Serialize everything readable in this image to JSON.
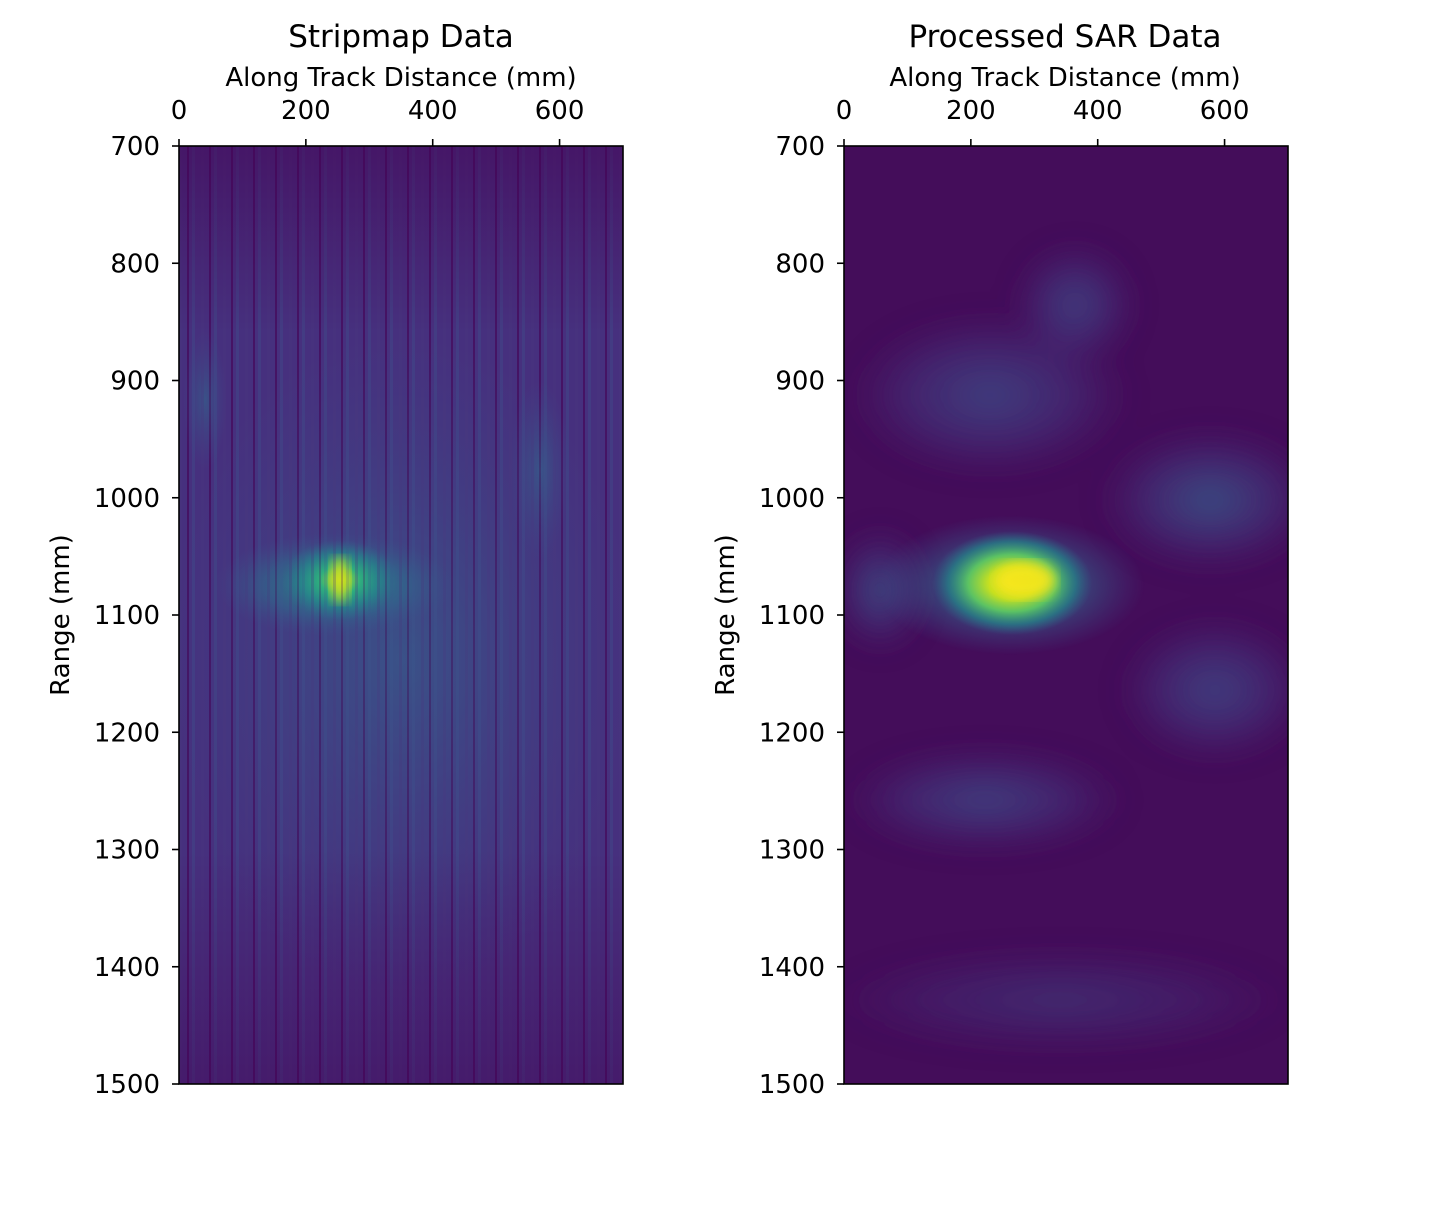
{
  "chart_data": [
    {
      "type": "heatmap",
      "title": "Stripmap Data",
      "xlabel": "Along Track Distance (mm)",
      "ylabel": "Range (mm)",
      "x_axis_position": "top",
      "xlim": [
        0,
        700
      ],
      "ylim": [
        700,
        1500
      ],
      "y_inverted": true,
      "xticks": [
        0,
        200,
        400,
        600
      ],
      "xtick_labels": [
        "0",
        "200",
        "400",
        "600"
      ],
      "yticks": [
        700,
        800,
        900,
        1000,
        1100,
        1200,
        1300,
        1400,
        1500
      ],
      "ytick_labels": [
        "700",
        "800",
        "900",
        "1000",
        "1100",
        "1200",
        "1300",
        "1400",
        "1500"
      ],
      "colormap": "viridis",
      "grid": false,
      "background_level": 0.1,
      "features": [
        {
          "description": "peak target",
          "x": 255,
          "y": 1070,
          "intensity": 0.85
        },
        {
          "description": "target sidelobes",
          "x_range": [
            120,
            420
          ],
          "y_range": [
            1040,
            1110
          ],
          "intensity": 0.4
        },
        {
          "description": "vertical streak texture",
          "x_range": [
            0,
            700
          ],
          "y_range": [
            850,
            1300
          ],
          "intensity": 0.2
        }
      ]
    },
    {
      "type": "heatmap",
      "title": "Processed SAR Data",
      "xlabel": "Along Track Distance (mm)",
      "ylabel": "Range (mm)",
      "x_axis_position": "top",
      "xlim": [
        0,
        700
      ],
      "ylim": [
        700,
        1500
      ],
      "y_inverted": true,
      "xticks": [
        0,
        200,
        400,
        600
      ],
      "xtick_labels": [
        "0",
        "200",
        "400",
        "600"
      ],
      "yticks": [
        700,
        800,
        900,
        1000,
        1100,
        1200,
        1300,
        1400,
        1500
      ],
      "ytick_labels": [
        "700",
        "800",
        "900",
        "1000",
        "1100",
        "1200",
        "1300",
        "1400",
        "1500"
      ],
      "colormap": "viridis",
      "grid": false,
      "background_level": 0.06,
      "features": [
        {
          "description": "focused target",
          "x": 285,
          "y": 1070,
          "intensity": 0.92
        },
        {
          "description": "target halo",
          "x_range": [
            140,
            380
          ],
          "y_range": [
            1040,
            1110
          ],
          "intensity": 0.6
        },
        {
          "description": "upper diffuse lobe",
          "x_range": [
            100,
            380
          ],
          "y_range": [
            830,
            980
          ],
          "intensity": 0.22
        },
        {
          "description": "right diffuse lobe",
          "x_range": [
            470,
            700
          ],
          "y_range": [
            950,
            1060
          ],
          "intensity": 0.25
        },
        {
          "description": "lower right lobe",
          "x_range": [
            470,
            700
          ],
          "y_range": [
            1130,
            1230
          ],
          "intensity": 0.22
        },
        {
          "description": "lower left lobe",
          "x_range": [
            100,
            400
          ],
          "y_range": [
            1230,
            1300
          ],
          "intensity": 0.18
        }
      ]
    }
  ]
}
